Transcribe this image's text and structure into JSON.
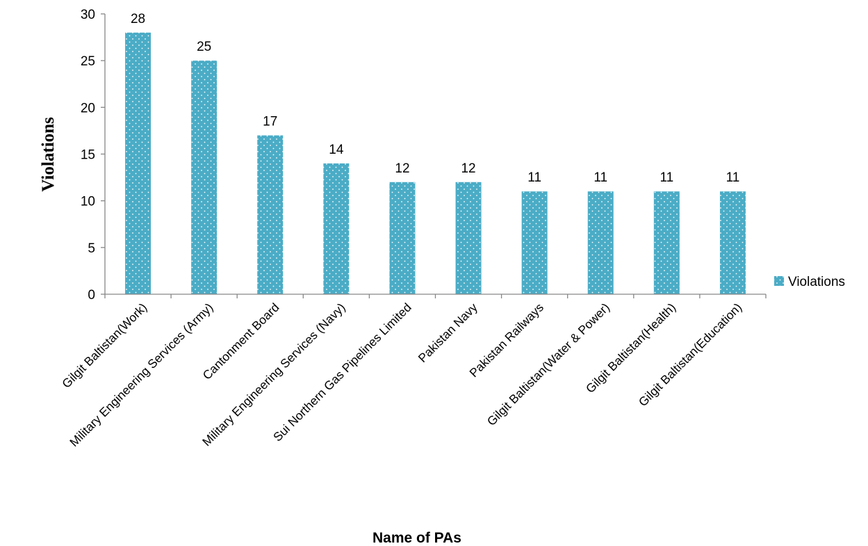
{
  "chart_data": {
    "type": "bar",
    "categories": [
      "Gilgit Baltistan(Work)",
      "Military Engineering Services (Army)",
      "Cantonment Board",
      "Military Engineering Services (Navy)",
      "Sui Northern Gas Pipelines Limited",
      "Pakistan Navy",
      "Pakistan Railways",
      "Gilgit Baltistan(Water & Power)",
      "Gilgit Baltistan(Health)",
      "Gilgit Baltistan(Education)"
    ],
    "series": [
      {
        "name": "Violations",
        "values": [
          28,
          25,
          17,
          14,
          12,
          12,
          11,
          11,
          11,
          11
        ],
        "color": "#4bacc6"
      }
    ],
    "title": "",
    "xlabel": "Name of PAs",
    "ylabel": "Violations",
    "ylim": [
      0,
      30
    ],
    "yticks": [
      0,
      5,
      10,
      15,
      20,
      25,
      30
    ],
    "grid": false,
    "legend_position": "right",
    "data_labels": true,
    "bar_pattern": "white-dots"
  }
}
